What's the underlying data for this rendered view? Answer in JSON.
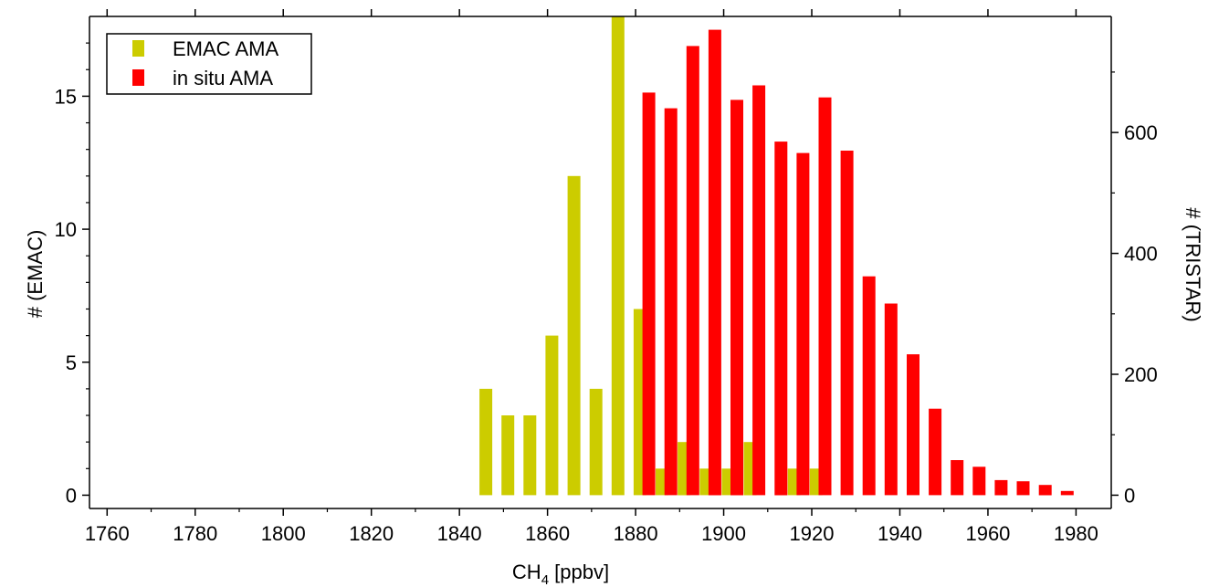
{
  "chart_data": {
    "type": "bar",
    "xlabel_main": "CH",
    "xlabel_sub": "4",
    "xlabel_rest": " [ppbv]",
    "ylabel_left": "# (EMAC)",
    "ylabel_right": "# (TRISTAR)",
    "xlim": [
      1756,
      1988
    ],
    "ylim_left": [
      -0.5,
      18
    ],
    "ylim_right": [
      -22,
      792
    ],
    "x_ticks": [
      1760,
      1780,
      1800,
      1820,
      1840,
      1860,
      1880,
      1900,
      1920,
      1940,
      1960,
      1980
    ],
    "y_left_ticks": [
      0,
      5,
      10,
      15
    ],
    "y_right_ticks": [
      0,
      200,
      400,
      600
    ],
    "legend_position": "top-left",
    "series": [
      {
        "name": "EMAC AMA",
        "axis": "left",
        "color": "#cccc00",
        "x": [
          1846,
          1851,
          1856,
          1861,
          1866,
          1871,
          1876,
          1881,
          1886,
          1891,
          1896,
          1901,
          1906,
          1911,
          1916,
          1921
        ],
        "values": [
          4,
          3,
          3,
          6,
          12,
          4,
          18,
          7,
          1,
          2,
          1,
          1,
          2,
          0,
          1,
          1
        ]
      },
      {
        "name": "in situ AMA",
        "axis": "right",
        "color": "#ff0000",
        "x": [
          1883,
          1888,
          1893,
          1898,
          1903,
          1908,
          1913,
          1918,
          1923,
          1928,
          1933,
          1938,
          1943,
          1948,
          1953,
          1958,
          1963,
          1968,
          1973,
          1978
        ],
        "values": [
          666,
          640,
          743,
          770,
          654,
          678,
          585,
          566,
          658,
          570,
          362,
          317,
          233,
          143,
          58,
          47,
          25,
          23,
          17,
          7
        ]
      }
    ]
  }
}
